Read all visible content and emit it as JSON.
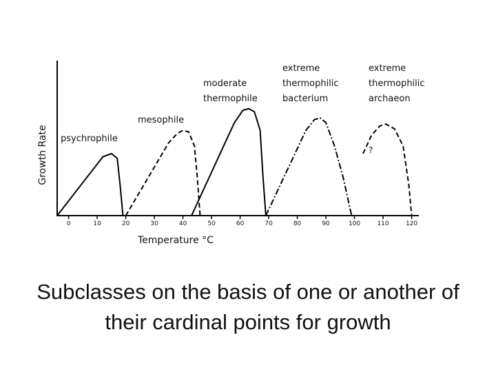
{
  "chart_data": {
    "type": "line",
    "x_label": "Temperature °C",
    "y_label": "Growth Rate",
    "xlim": [
      -4,
      123
    ],
    "ylim": [
      0,
      100
    ],
    "xticks": [
      0,
      10,
      20,
      30,
      40,
      50,
      60,
      70,
      80,
      90,
      100,
      110,
      120
    ],
    "color": "#000000",
    "series": [
      {
        "name": "psychrophile",
        "style": "solid",
        "x": [
          -4,
          12,
          15,
          17,
          18,
          19
        ],
        "values": [
          0,
          38,
          40,
          37,
          20,
          0
        ]
      },
      {
        "name": "mesophile",
        "style": "dashed",
        "x": [
          20,
          35,
          38,
          40,
          42,
          44,
          45,
          46
        ],
        "values": [
          0,
          47,
          53,
          55,
          54,
          45,
          25,
          0
        ]
      },
      {
        "name": "moderate thermophile",
        "style": "solid",
        "x": [
          43,
          58,
          61,
          63,
          65,
          67,
          68,
          69
        ],
        "values": [
          0,
          60,
          68,
          69,
          67,
          55,
          25,
          0
        ]
      },
      {
        "name": "extreme thermophilic bacterium",
        "style": "dashdot",
        "x": [
          69,
          83,
          86,
          88,
          90,
          93,
          96,
          99
        ],
        "values": [
          0,
          55,
          62,
          63,
          60,
          45,
          25,
          0
        ]
      },
      {
        "name": "extreme thermophilic archaeon",
        "style": "dashed",
        "x": [
          103,
          106,
          109,
          111,
          114,
          117,
          119,
          120
        ],
        "values": [
          40,
          52,
          58,
          59,
          56,
          45,
          20,
          0
        ]
      }
    ],
    "annotations": [
      "?"
    ]
  },
  "caption": "Subclasses on the basis of one or another of their cardinal points for growth"
}
